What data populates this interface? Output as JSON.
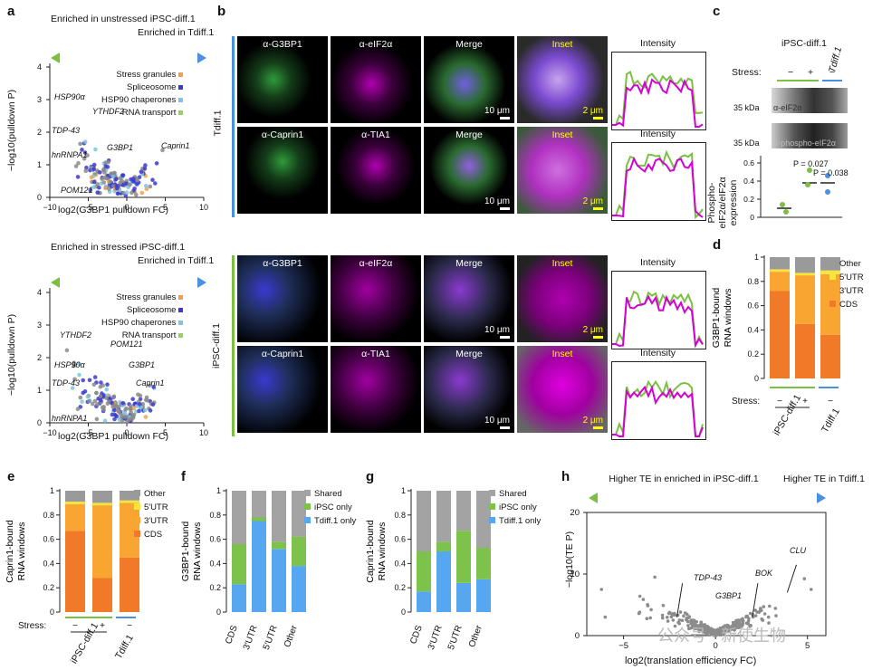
{
  "panels": {
    "a": "a",
    "b": "b",
    "c": "c",
    "d": "d",
    "e": "e",
    "f": "f",
    "g": "g",
    "h": "h"
  },
  "colors": {
    "green": "#7bc043",
    "blue": "#4a90e2",
    "magenta": "#d400d4",
    "cds": "#f07a28",
    "utr3": "#f8a531",
    "utr5": "#f7e53a",
    "other": "#9a9a9a",
    "shared": "#a3a3a3",
    "ipsc_only": "#7dc24a",
    "tdiff_only": "#56a7ef"
  },
  "panel_a": {
    "top": {
      "left_header": "Enriched in unstressed iPSC-diff.1",
      "right_header": "Enriched in Tdiff.1",
      "xlabel": "log2(G3BP1 pulldown FC)",
      "ylabel": "−log10(pulldown P)",
      "legend": [
        "Stress granules",
        "Spliceosome",
        "HSP90 chaperones",
        "RNA transport"
      ],
      "labels": [
        "HSP90α",
        "YTHDF2",
        "TDP-43",
        "hnRNPA1",
        "G3BP1",
        "Caprin1",
        "POM121"
      ],
      "xticks": [
        "−10",
        "−5",
        "0",
        "5",
        "10"
      ],
      "yticks": [
        "0",
        "1",
        "2",
        "3",
        "4"
      ]
    },
    "bottom": {
      "left_header": "Enriched in stressed iPSC-diff.1",
      "right_header": "Enriched in Tdiff.1",
      "xlabel": "log2(G3BP1 pulldown FC)",
      "ylabel": "−log10(pulldown P)",
      "legend": [
        "Stress granules",
        "Spliceosome",
        "HSP90 chaperones",
        "RNA transport"
      ],
      "labels": [
        "YTHDF2",
        "POM121",
        "HSP90α",
        "G3BP1",
        "TDP-43",
        "Caprin1",
        "hnRNPA1"
      ],
      "xticks": [
        "−10",
        "−5",
        "0",
        "5",
        "10"
      ],
      "yticks": [
        "0",
        "1",
        "2",
        "3",
        "4"
      ]
    }
  },
  "panel_b": {
    "row_group_1": "Tdiff.1",
    "row_group_2": "iPSC-diff.1",
    "rows": [
      [
        "α-G3BP1",
        "α-eIF2α",
        "Merge",
        "Inset"
      ],
      [
        "α-Caprin1",
        "α-TIA1",
        "Merge",
        "Inset"
      ],
      [
        "α-G3BP1",
        "α-eIF2α",
        "Merge",
        "Inset"
      ],
      [
        "α-Caprin1",
        "α-TIA1",
        "Merge",
        "Inset"
      ]
    ],
    "scale_10": "10 μm",
    "scale_2": "2 μm",
    "intensity": "Intensity"
  },
  "panel_c": {
    "header": "iPSC-diff.1",
    "header2": "Tdiff.1",
    "stress_label": "Stress:",
    "stress_vals": [
      "−",
      "+",
      "−"
    ],
    "kda1": "35 kDa",
    "kda2": "35 kDa",
    "blot1": "α-eIF2α",
    "blot2": "α-phospho-eIF2α",
    "ylabel": "Phospho-eIF2α/eIF2α expression",
    "p1": "P = 0.027",
    "p2": "P = 0.038",
    "yticks": [
      "0",
      "0.2",
      "0.4",
      "0.6"
    ]
  },
  "chart_data": [
    {
      "panel": "d",
      "type": "bar",
      "stacked": true,
      "categories": [
        "iPSC-diff.1 −",
        "iPSC-diff.1 +",
        "Tdiff.1 −"
      ],
      "series": [
        {
          "name": "CDS",
          "values": [
            0.72,
            0.45,
            0.36
          ]
        },
        {
          "name": "3′UTR",
          "values": [
            0.16,
            0.4,
            0.5
          ]
        },
        {
          "name": "5′UTR",
          "values": [
            0.02,
            0.02,
            0.03
          ]
        },
        {
          "name": "Other",
          "values": [
            0.1,
            0.13,
            0.11
          ]
        }
      ],
      "ylabel": "G3BP1-bound RNA windows",
      "ylim": [
        0,
        1
      ],
      "yticks": [
        "0",
        "0.2",
        "0.4",
        "0.6",
        "0.8",
        "1"
      ],
      "xlabels": [
        "iPSC-diff.1",
        "Tdiff.1"
      ],
      "stress_label": "Stress:",
      "stress_vals": [
        "−",
        "+",
        "−"
      ]
    },
    {
      "panel": "e",
      "type": "bar",
      "stacked": true,
      "categories": [
        "iPSC-diff.1 −",
        "iPSC-diff.1 +",
        "Tdiff.1 −"
      ],
      "series": [
        {
          "name": "CDS",
          "values": [
            0.67,
            0.28,
            0.45
          ]
        },
        {
          "name": "3′UTR",
          "values": [
            0.22,
            0.6,
            0.45
          ]
        },
        {
          "name": "5′UTR",
          "values": [
            0.02,
            0.02,
            0.02
          ]
        },
        {
          "name": "Other",
          "values": [
            0.09,
            0.1,
            0.08
          ]
        }
      ],
      "ylabel": "Caprin1-bound RNA windows",
      "ylim": [
        0,
        1
      ],
      "yticks": [
        "0",
        "0.2",
        "0.4",
        "0.6",
        "0.8",
        "1"
      ],
      "xlabels": [
        "iPSC-diff.1",
        "Tdiff.1"
      ],
      "stress_label": "Stress:",
      "stress_vals": [
        "−",
        "+",
        "−"
      ]
    },
    {
      "panel": "f",
      "type": "bar",
      "stacked": true,
      "categories": [
        "CDS",
        "3′UTR",
        "5′UTR",
        "Other"
      ],
      "series": [
        {
          "name": "Tdiff.1 only",
          "values": [
            0.23,
            0.75,
            0.52,
            0.38
          ]
        },
        {
          "name": "iPSC only",
          "values": [
            0.33,
            0.03,
            0.06,
            0.24
          ]
        },
        {
          "name": "Shared",
          "values": [
            0.44,
            0.22,
            0.42,
            0.38
          ]
        }
      ],
      "ylabel": "G3BP1-bound RNA windows",
      "ylim": [
        0,
        1
      ],
      "yticks": [
        "0",
        "0.2",
        "0.4",
        "0.6",
        "0.8",
        "1"
      ]
    },
    {
      "panel": "g",
      "type": "bar",
      "stacked": true,
      "categories": [
        "CDS",
        "3′UTR",
        "5′UTR",
        "Other"
      ],
      "series": [
        {
          "name": "Tdiff.1 only",
          "values": [
            0.17,
            0.5,
            0.24,
            0.27
          ]
        },
        {
          "name": "iPSC only",
          "values": [
            0.33,
            0.08,
            0.43,
            0.26
          ]
        },
        {
          "name": "Shared",
          "values": [
            0.5,
            0.42,
            0.33,
            0.47
          ]
        }
      ],
      "ylabel": "Caprin1-bound RNA windows",
      "ylim": [
        0,
        1
      ],
      "yticks": [
        "0",
        "0.2",
        "0.4",
        "0.6",
        "0.8",
        "1"
      ]
    },
    {
      "panel": "h",
      "type": "scatter",
      "xlabel": "log2(translation efficiency FC)",
      "ylabel": "−log10(TE P)",
      "xlim": [
        -7,
        6
      ],
      "ylim": [
        0,
        20
      ],
      "xticks": [
        "−5",
        "0",
        "5"
      ],
      "yticks": [
        "0",
        "10",
        "20"
      ],
      "left_header": "Higher TE in enriched in iPSC-diff.1",
      "right_header": "Higher TE in Tdiff.1",
      "labels": [
        "TDP-43",
        "G3BP1",
        "BOK",
        "CLU"
      ]
    }
  ],
  "watermark": "公众号 · 新使生物"
}
